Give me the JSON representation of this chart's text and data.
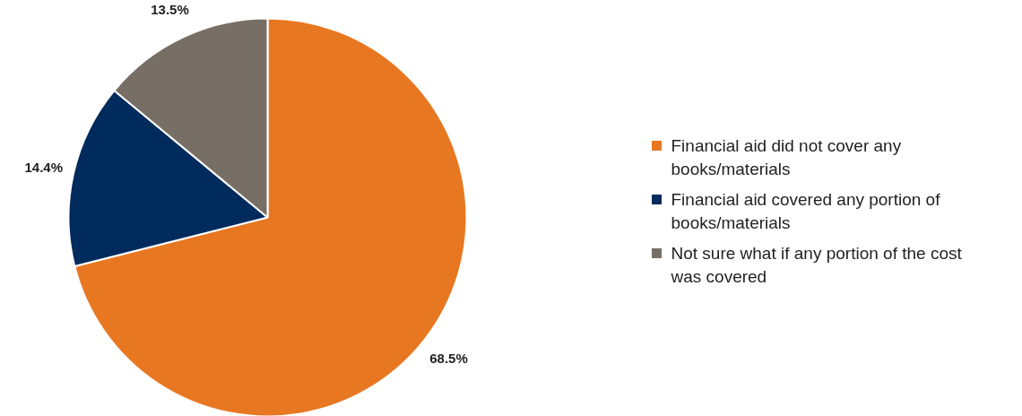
{
  "chart_data": {
    "type": "pie",
    "categories": [
      "Financial aid did not cover any books/materials",
      "Financial aid covered any portion of books/materials",
      "Not sure what if any portion of the cost was covered"
    ],
    "values": [
      68.5,
      14.4,
      13.5
    ],
    "colors": [
      "#e87722",
      "#002b5c",
      "#776f65"
    ],
    "value_labels": [
      "68.5%",
      "14.4%",
      "13.5%"
    ],
    "legend": "right"
  }
}
